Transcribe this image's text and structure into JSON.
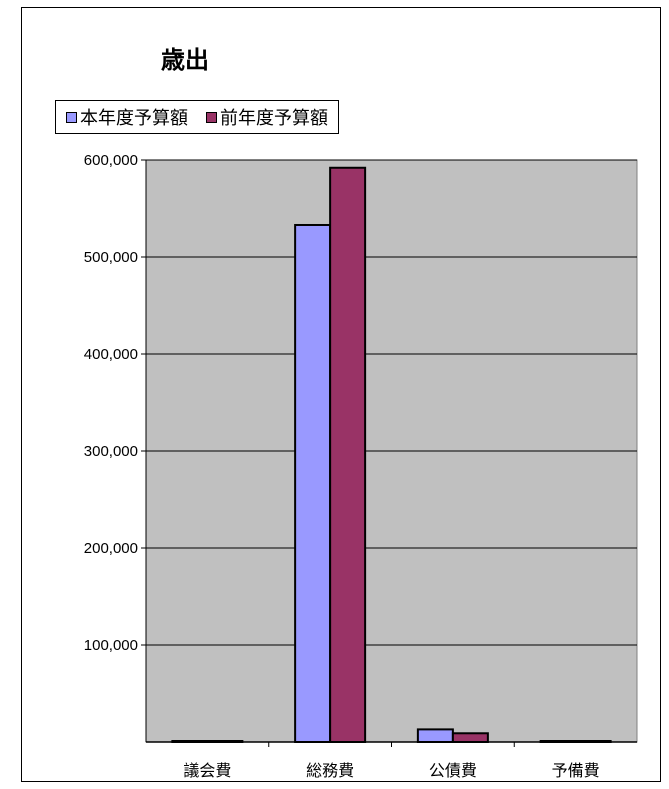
{
  "chart_data": {
    "type": "bar",
    "title": "歳出",
    "categories": [
      "議会費",
      "総務費",
      "公債費",
      "予備費"
    ],
    "series": [
      {
        "name": "本年度予算額",
        "color": "#9999ff",
        "values": [
          800,
          533000,
          13000,
          400
        ]
      },
      {
        "name": "前年度予算額",
        "color": "#993366",
        "values": [
          900,
          592000,
          9000,
          400
        ]
      }
    ],
    "y_ticks": [
      "100,000",
      "200,000",
      "300,000",
      "400,000",
      "500,000",
      "600,000"
    ],
    "y_tick_values": [
      100000,
      200000,
      300000,
      400000,
      500000,
      600000
    ],
    "ylim": [
      0,
      600000
    ],
    "xlabel": "",
    "ylabel": "",
    "grid": true,
    "legend_position": "top-left",
    "plot_background": "#c0c0c0"
  }
}
